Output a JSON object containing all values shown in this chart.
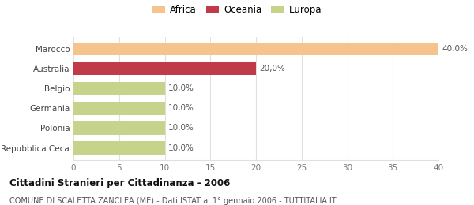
{
  "categories": [
    "Repubblica Ceca",
    "Polonia",
    "Germania",
    "Belgio",
    "Australia",
    "Marocco"
  ],
  "values": [
    10.0,
    10.0,
    10.0,
    10.0,
    20.0,
    40.0
  ],
  "colors": [
    "#c5d48a",
    "#c5d48a",
    "#c5d48a",
    "#c5d48a",
    "#c03a4a",
    "#f5c48e"
  ],
  "labels": [
    "10,0%",
    "10,0%",
    "10,0%",
    "10,0%",
    "20,0%",
    "40,0%"
  ],
  "legend": [
    {
      "label": "Africa",
      "color": "#f5c48e"
    },
    {
      "label": "Oceania",
      "color": "#c03a4a"
    },
    {
      "label": "Europa",
      "color": "#c5d48a"
    }
  ],
  "xlim": [
    0,
    40
  ],
  "xticks": [
    0,
    5,
    10,
    15,
    20,
    25,
    30,
    35,
    40
  ],
  "title": "Cittadini Stranieri per Cittadinanza - 2006",
  "subtitle": "COMUNE DI SCALETTA ZANCLEA (ME) - Dati ISTAT al 1° gennaio 2006 - TUTTITALIA.IT",
  "bg_color": "#ffffff",
  "grid_color": "#e0e0e0",
  "bar_height": 0.65
}
